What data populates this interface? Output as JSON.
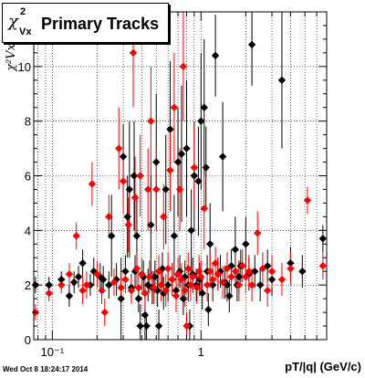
{
  "title": {
    "symbol": "χ",
    "superscript": "2",
    "subscript": "Vx",
    "text": "Primary Tracks"
  },
  "footer": "Wed Oct  8 18:24:17 2014",
  "colors": {
    "series_black": "#000000",
    "series_red": "#ff0000",
    "grid": "#000000",
    "frame": "#000000"
  },
  "chart_data": {
    "type": "scatter",
    "title": "Primary Tracks",
    "xlabel": "pT/|q| (GeV/c)",
    "ylabel": "χ²Vx",
    "xscale": "log",
    "xlim": [
      0.075,
      7.0
    ],
    "ylim": [
      0,
      12
    ],
    "xticks": [
      {
        "v": 0.1,
        "label": "10⁻¹"
      },
      {
        "v": 1,
        "label": "1"
      }
    ],
    "yticks": [
      0,
      2,
      4,
      6,
      8,
      10
    ],
    "grid": true,
    "marker": "diamond",
    "series": [
      {
        "color": "#000000",
        "points": [
          [
            0.077,
            2.0,
            0.3
          ],
          [
            0.095,
            2.0,
            0.3
          ],
          [
            0.115,
            2.2,
            0.3
          ],
          [
            0.13,
            1.6,
            0.4
          ],
          [
            0.14,
            2.1,
            0.4
          ],
          [
            0.15,
            2.3,
            0.4
          ],
          [
            0.16,
            2.8,
            0.5
          ],
          [
            0.18,
            2.0,
            0.4
          ],
          [
            0.19,
            2.5,
            0.5
          ],
          [
            0.21,
            2.3,
            0.5
          ],
          [
            0.22,
            2.2,
            0.5
          ],
          [
            0.24,
            2.0,
            0.5
          ],
          [
            0.25,
            3.8,
            1.5
          ],
          [
            0.27,
            2.2,
            0.6
          ],
          [
            0.29,
            1.5,
            1.5
          ],
          [
            0.3,
            6.7,
            1.2
          ],
          [
            0.31,
            2.5,
            0.6
          ],
          [
            0.32,
            4.5,
            1.5
          ],
          [
            0.33,
            5.5,
            2.5
          ],
          [
            0.34,
            1.9,
            0.5
          ],
          [
            0.355,
            6.0,
            2.0
          ],
          [
            0.36,
            2.5,
            0.6
          ],
          [
            0.37,
            3.8,
            1.5
          ],
          [
            0.38,
            1.5,
            0.5
          ],
          [
            0.39,
            0.5,
            0.8
          ],
          [
            0.41,
            2.3,
            0.6
          ],
          [
            0.42,
            0.9,
            1.0
          ],
          [
            0.43,
            0.5,
            0.5
          ],
          [
            0.44,
            2.0,
            0.6
          ],
          [
            0.46,
            4.2,
            1.8
          ],
          [
            0.47,
            1.9,
            0.6
          ],
          [
            0.49,
            2.3,
            0.6
          ],
          [
            0.5,
            6.5,
            2.5
          ],
          [
            0.51,
            1.8,
            0.6
          ],
          [
            0.52,
            0.5,
            0.6
          ],
          [
            0.55,
            2.6,
            0.6
          ],
          [
            0.56,
            1.7,
            0.6
          ],
          [
            0.58,
            5.5,
            2.0
          ],
          [
            0.6,
            2.0,
            0.6
          ],
          [
            0.62,
            7.7,
            2.5
          ],
          [
            0.64,
            2.2,
            0.6
          ],
          [
            0.66,
            3.8,
            1.5
          ],
          [
            0.68,
            1.8,
            0.6
          ],
          [
            0.7,
            6.5,
            2.0
          ],
          [
            0.72,
            2.5,
            0.6
          ],
          [
            0.74,
            6.8,
            2.5
          ],
          [
            0.76,
            1.5,
            0.6
          ],
          [
            0.78,
            2.3,
            0.6
          ],
          [
            0.8,
            7.0,
            2.5
          ],
          [
            0.82,
            2.0,
            0.6
          ],
          [
            0.84,
            0.5,
            0.6
          ],
          [
            0.86,
            4.0,
            1.5
          ],
          [
            0.88,
            2.4,
            0.6
          ],
          [
            0.9,
            6.0,
            2.0
          ],
          [
            0.93,
            2.0,
            0.6
          ],
          [
            0.96,
            5.8,
            2.0
          ],
          [
            0.98,
            2.2,
            0.6
          ],
          [
            1.0,
            8.0,
            2.5
          ],
          [
            1.02,
            1.7,
            0.6
          ],
          [
            1.05,
            8.5,
            2.5
          ],
          [
            1.08,
            6.3,
            1.5
          ],
          [
            1.1,
            2.5,
            0.6
          ],
          [
            1.12,
            1.1,
            0.6
          ],
          [
            1.15,
            3.5,
            1.5
          ],
          [
            1.2,
            2.0,
            0.6
          ],
          [
            1.25,
            10.4,
            1.5
          ],
          [
            1.3,
            2.4,
            0.6
          ],
          [
            1.35,
            2.5,
            0.6
          ],
          [
            1.4,
            6.7,
            2.0
          ],
          [
            1.45,
            2.1,
            0.6
          ],
          [
            1.5,
            2.0,
            0.6
          ],
          [
            1.55,
            1.6,
            0.6
          ],
          [
            1.6,
            2.7,
            0.6
          ],
          [
            1.7,
            3.3,
            1.2
          ],
          [
            1.75,
            2.0,
            0.6
          ],
          [
            1.8,
            2.3,
            0.6
          ],
          [
            1.85,
            2.7,
            0.6
          ],
          [
            2.0,
            3.5,
            1.0
          ],
          [
            2.1,
            2.4,
            0.6
          ],
          [
            2.2,
            10.8,
            1.5
          ],
          [
            2.3,
            2.5,
            0.6
          ],
          [
            2.5,
            2.0,
            0.6
          ],
          [
            2.8,
            2.7,
            0.6
          ],
          [
            3.0,
            2.2,
            0.6
          ],
          [
            3.5,
            9.5,
            2.5
          ],
          [
            4.0,
            2.8,
            0.6
          ],
          [
            4.8,
            2.5,
            0.6
          ],
          [
            6.6,
            3.7,
            0.5
          ]
        ]
      },
      {
        "color": "#ff0000",
        "points": [
          [
            0.077,
            1.0,
            0.3
          ],
          [
            0.095,
            1.7,
            0.3
          ],
          [
            0.115,
            2.0,
            0.3
          ],
          [
            0.13,
            2.4,
            0.4
          ],
          [
            0.145,
            3.8,
            0.5
          ],
          [
            0.16,
            1.8,
            0.5
          ],
          [
            0.17,
            2.0,
            0.5
          ],
          [
            0.185,
            5.7,
            0.8
          ],
          [
            0.2,
            2.4,
            0.5
          ],
          [
            0.215,
            1.8,
            0.5
          ],
          [
            0.225,
            1.0,
            0.5
          ],
          [
            0.24,
            4.5,
            0.8
          ],
          [
            0.26,
            2.1,
            0.5
          ],
          [
            0.28,
            7.0,
            1.5
          ],
          [
            0.29,
            1.9,
            0.5
          ],
          [
            0.3,
            5.8,
            1.2
          ],
          [
            0.31,
            2.2,
            0.5
          ],
          [
            0.325,
            4.2,
            1.0
          ],
          [
            0.34,
            1.8,
            0.5
          ],
          [
            0.35,
            10.5,
            2.0
          ],
          [
            0.36,
            5.2,
            1.5
          ],
          [
            0.37,
            2.6,
            0.6
          ],
          [
            0.38,
            1.9,
            0.6
          ],
          [
            0.39,
            6.0,
            1.5
          ],
          [
            0.4,
            2.4,
            0.6
          ],
          [
            0.42,
            1.7,
            0.6
          ],
          [
            0.44,
            5.5,
            1.5
          ],
          [
            0.45,
            2.3,
            0.6
          ],
          [
            0.46,
            8.0,
            2.0
          ],
          [
            0.48,
            1.9,
            0.6
          ],
          [
            0.5,
            5.5,
            1.5
          ],
          [
            0.52,
            2.5,
            0.6
          ],
          [
            0.54,
            2.0,
            0.6
          ],
          [
            0.56,
            4.5,
            1.2
          ],
          [
            0.58,
            1.8,
            0.6
          ],
          [
            0.6,
            2.6,
            0.6
          ],
          [
            0.62,
            6.2,
            1.5
          ],
          [
            0.64,
            2.2,
            0.6
          ],
          [
            0.66,
            8.5,
            2.0
          ],
          [
            0.68,
            1.6,
            0.6
          ],
          [
            0.7,
            2.4,
            0.6
          ],
          [
            0.72,
            5.5,
            1.5
          ],
          [
            0.74,
            2.2,
            0.6
          ],
          [
            0.76,
            10.0,
            2.0
          ],
          [
            0.78,
            1.8,
            0.6
          ],
          [
            0.8,
            0.5,
            0.5
          ],
          [
            0.82,
            2.6,
            0.6
          ],
          [
            0.85,
            2.0,
            0.6
          ],
          [
            0.88,
            2.3,
            0.6
          ],
          [
            0.9,
            6.3,
            1.5
          ],
          [
            0.94,
            1.9,
            0.6
          ],
          [
            0.97,
            2.5,
            0.6
          ],
          [
            1.0,
            2.3,
            0.6
          ],
          [
            1.05,
            4.8,
            1.5
          ],
          [
            1.1,
            2.0,
            0.6
          ],
          [
            1.15,
            2.5,
            0.6
          ],
          [
            1.2,
            2.2,
            0.6
          ],
          [
            1.25,
            2.8,
            0.6
          ],
          [
            1.3,
            2.4,
            0.6
          ],
          [
            1.4,
            2.1,
            0.6
          ],
          [
            1.5,
            2.6,
            0.6
          ],
          [
            1.6,
            2.3,
            0.6
          ],
          [
            1.7,
            2.5,
            0.6
          ],
          [
            1.8,
            2.0,
            0.6
          ],
          [
            1.9,
            2.7,
            0.6
          ],
          [
            2.0,
            2.3,
            0.6
          ],
          [
            2.1,
            2.5,
            0.6
          ],
          [
            2.2,
            2.0,
            0.6
          ],
          [
            2.4,
            3.9,
            0.8
          ],
          [
            2.6,
            2.6,
            0.6
          ],
          [
            2.8,
            1.8,
            0.6
          ],
          [
            3.0,
            2.5,
            0.6
          ],
          [
            3.5,
            2.2,
            0.6
          ],
          [
            4.0,
            2.6,
            0.6
          ],
          [
            5.2,
            5.1,
            0.5
          ],
          [
            6.6,
            2.7,
            0.5
          ]
        ]
      }
    ]
  }
}
